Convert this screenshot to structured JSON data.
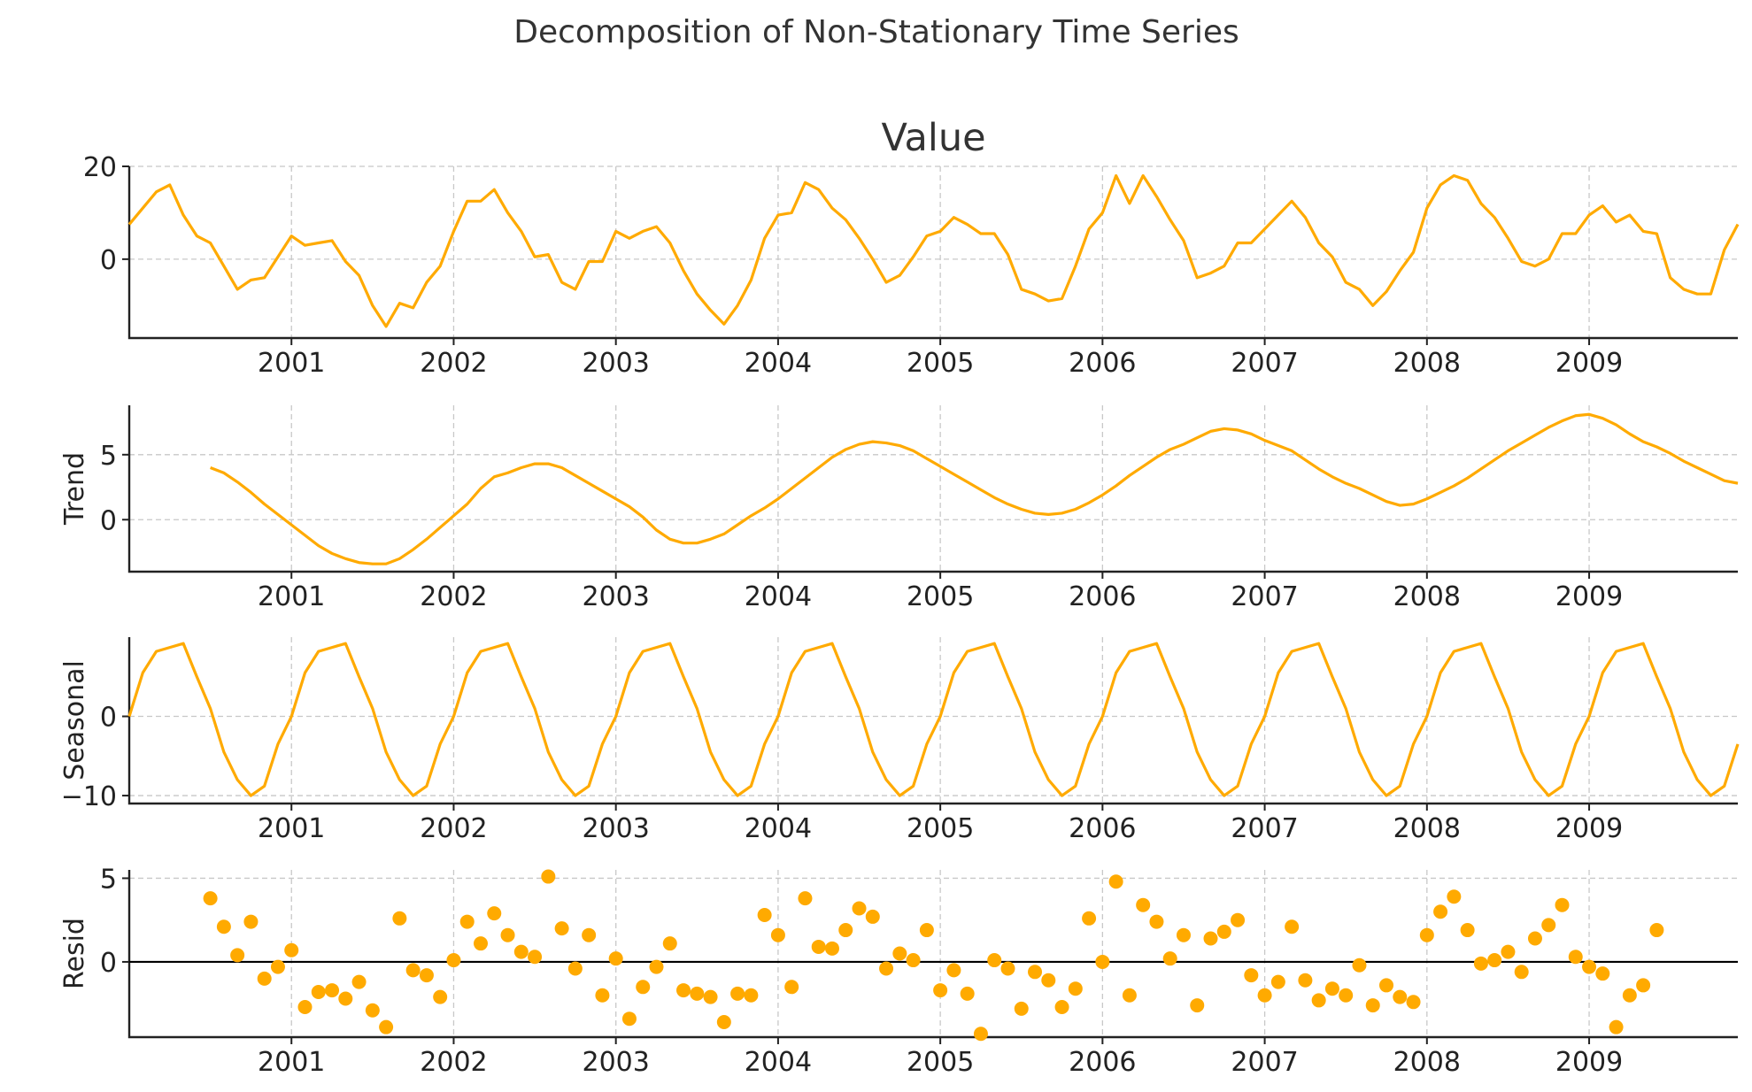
{
  "figure": {
    "title": "Decomposition of Non-Stationary Time Series",
    "line_color": "#FFAA00"
  },
  "chart_data": [
    {
      "type": "line",
      "name": "value",
      "title": "Value",
      "ylabel": "",
      "x_start": "2000-01",
      "x_end": "2009-12",
      "ylim": [
        -17,
        20
      ],
      "yticks": [
        0,
        20
      ],
      "xticks": [
        "2001",
        "2002",
        "2003",
        "2004",
        "2005",
        "2006",
        "2007",
        "2008",
        "2009"
      ],
      "grid": true,
      "values": [
        7.5,
        11,
        14.5,
        16,
        9.5,
        5,
        3.5,
        -1.5,
        -6.5,
        -4.5,
        -4,
        0.5,
        5,
        3,
        3.5,
        4,
        -0.5,
        -3.5,
        -10,
        -14.5,
        -9.5,
        -10.5,
        -5,
        -1.5,
        6,
        12.5,
        12.5,
        15,
        10,
        6,
        0.5,
        1,
        -5,
        -6.5,
        -0.5,
        -0.5,
        6,
        4.5,
        6,
        7,
        3.5,
        -2.5,
        -7.5,
        -11,
        -14,
        -10,
        -4.5,
        4.5,
        9.5,
        10,
        16.5,
        15,
        11,
        8.5,
        4.5,
        0,
        -5,
        -3.5,
        0.5,
        5,
        6,
        9,
        7.5,
        5.5,
        5.5,
        1,
        -6.5,
        -7.5,
        -9,
        -8.5,
        -1.5,
        6.5,
        10,
        18,
        12,
        18,
        13.5,
        8.5,
        4,
        -4,
        -3,
        -1.5,
        3.5,
        3.5,
        6.5,
        9.5,
        12.5,
        9,
        3.5,
        0.5,
        -5,
        -6.5,
        -10,
        -7,
        -2.5,
        1.5,
        11,
        16,
        18,
        17,
        12,
        9,
        4.5,
        -0.5,
        -1.5,
        0,
        5.5,
        5.5,
        9.5,
        11.5,
        8,
        9.5,
        6,
        5.5,
        -4,
        -6.5,
        -7.5,
        -7.5,
        2,
        7.5
      ]
    },
    {
      "type": "line",
      "name": "trend",
      "title": "",
      "ylabel": "Trend",
      "x_start": "2000-01",
      "x_end": "2009-12",
      "ylim": [
        -4,
        8.8
      ],
      "yticks": [
        0,
        5
      ],
      "xticks": [
        "2001",
        "2002",
        "2003",
        "2004",
        "2005",
        "2006",
        "2007",
        "2008",
        "2009"
      ],
      "grid": true,
      "values": [
        null,
        null,
        null,
        null,
        null,
        null,
        4.0,
        3.6,
        2.9,
        2.1,
        1.2,
        0.4,
        -0.4,
        -1.2,
        -2.0,
        -2.6,
        -3.0,
        -3.3,
        -3.4,
        -3.4,
        -3.0,
        -2.3,
        -1.5,
        -0.6,
        0.3,
        1.2,
        2.4,
        3.3,
        3.6,
        4.0,
        4.3,
        4.3,
        4.0,
        3.4,
        2.8,
        2.2,
        1.6,
        1.0,
        0.2,
        -0.8,
        -1.5,
        -1.8,
        -1.8,
        -1.5,
        -1.1,
        -0.4,
        0.3,
        0.9,
        1.6,
        2.4,
        3.2,
        4.0,
        4.8,
        5.4,
        5.8,
        6.0,
        5.9,
        5.7,
        5.3,
        4.7,
        4.1,
        3.5,
        2.9,
        2.3,
        1.7,
        1.2,
        0.8,
        0.5,
        0.4,
        0.5,
        0.8,
        1.3,
        1.9,
        2.6,
        3.4,
        4.1,
        4.8,
        5.4,
        5.8,
        6.3,
        6.8,
        7.0,
        6.9,
        6.6,
        6.1,
        5.7,
        5.3,
        4.6,
        3.9,
        3.3,
        2.8,
        2.4,
        1.9,
        1.4,
        1.1,
        1.2,
        1.6,
        2.1,
        2.6,
        3.2,
        3.9,
        4.6,
        5.3,
        5.9,
        6.5,
        7.1,
        7.6,
        8.0,
        8.1,
        7.8,
        7.3,
        6.6,
        6.0,
        5.6,
        5.1,
        4.5,
        4.0,
        3.5,
        3.0,
        2.8,
        null,
        null,
        null,
        null,
        null,
        null
      ]
    },
    {
      "type": "line",
      "name": "seasonal",
      "title": "",
      "ylabel": "Seasonal",
      "x_start": "2000-01",
      "x_end": "2009-12",
      "ylim": [
        -11,
        10
      ],
      "yticks": [
        -10,
        0
      ],
      "xticks": [
        "2001",
        "2002",
        "2003",
        "2004",
        "2005",
        "2006",
        "2007",
        "2008",
        "2009"
      ],
      "grid": true,
      "pattern": [
        0,
        5.5,
        8.2,
        8.7,
        9.2,
        5,
        1,
        -4.5,
        -8,
        -10,
        -8.8,
        -3.5
      ],
      "pattern_start_month_index": 0
    },
    {
      "type": "scatter",
      "name": "resid",
      "title": "",
      "ylabel": "Resid",
      "x_start": "2000-01",
      "x_end": "2009-12",
      "ylim": [
        -4.5,
        5.5
      ],
      "yticks": [
        0,
        5
      ],
      "xticks": [
        "2001",
        "2002",
        "2003",
        "2004",
        "2005",
        "2006",
        "2007",
        "2008",
        "2009"
      ],
      "grid": true,
      "zero_line": true,
      "values": [
        null,
        null,
        null,
        null,
        null,
        null,
        3.8,
        2.1,
        0.4,
        2.4,
        -1.0,
        -0.3,
        0.7,
        -2.7,
        -1.8,
        -1.7,
        -2.2,
        -1.2,
        -2.9,
        -3.9,
        2.6,
        -0.5,
        -0.8,
        -2.1,
        0.1,
        2.4,
        1.1,
        2.9,
        1.6,
        0.6,
        0.3,
        5.1,
        2.0,
        -0.4,
        1.6,
        -2.0,
        0.2,
        -3.4,
        -1.5,
        -0.3,
        1.1,
        -1.7,
        -1.9,
        -2.1,
        -3.6,
        -1.9,
        -2.0,
        2.8,
        1.6,
        -1.5,
        3.8,
        0.9,
        0.8,
        1.9,
        3.2,
        2.7,
        -0.4,
        0.5,
        0.1,
        1.9,
        -1.7,
        -0.5,
        -1.9,
        -4.3,
        0.1,
        -0.4,
        -2.8,
        -0.6,
        -1.1,
        -2.7,
        -1.6,
        2.6,
        0.0,
        4.8,
        -2.0,
        3.4,
        2.4,
        0.2,
        1.6,
        -2.6,
        1.4,
        1.8,
        2.5,
        -0.8,
        -2.0,
        -1.2,
        2.1,
        -1.1,
        -2.3,
        -1.6,
        -2.0,
        -0.2,
        -2.6,
        -1.4,
        -2.1,
        -2.4,
        1.6,
        3.0,
        3.9,
        1.9,
        -0.1,
        0.1,
        0.6,
        -0.6,
        1.4,
        2.2,
        3.4,
        0.3,
        -0.3,
        -0.7,
        -3.9,
        -2.0,
        -1.4,
        1.9,
        null,
        null,
        null,
        null,
        null,
        null
      ]
    }
  ]
}
